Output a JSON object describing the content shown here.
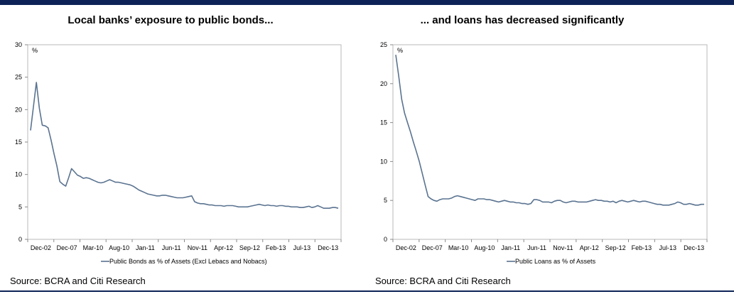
{
  "colors": {
    "accent": "#0d2357",
    "series": "#5a7390"
  },
  "left": {
    "title": "Local banks’ exposure to public bonds...",
    "source": "Source: BCRA and Citi Research"
  },
  "right": {
    "title": "... and loans has decreased significantly",
    "source": "Source: BCRA and Citi Research"
  },
  "chart_data": [
    {
      "type": "line",
      "title": "Local banks’ exposure to public bonds...",
      "ylabel": "%",
      "ylim": [
        0,
        30
      ],
      "yticks": [
        "0",
        "5",
        "10",
        "15",
        "20",
        "25",
        "30"
      ],
      "xticks": [
        "Dec-02",
        "Dec-07",
        "Mar-10",
        "Aug-10",
        "Jan-11",
        "Jun-11",
        "Nov-11",
        "Apr-12",
        "Sep-12",
        "Feb-13",
        "Jul-13",
        "Dec-13"
      ],
      "grid": false,
      "legend": "bottom",
      "series": [
        {
          "name": "Public Bonds as % of Assets (Excl Lebacs and Nobacs)",
          "values": [
            16.8,
            20.5,
            24.2,
            20.2,
            17.6,
            17.5,
            17.2,
            15.3,
            13.2,
            11.3,
            8.9,
            8.5,
            8.2,
            9.5,
            10.9,
            10.4,
            9.9,
            9.7,
            9.4,
            9.5,
            9.4,
            9.2,
            9.0,
            8.8,
            8.7,
            8.8,
            9.0,
            9.2,
            9.0,
            8.8,
            8.8,
            8.7,
            8.6,
            8.5,
            8.4,
            8.2,
            7.9,
            7.6,
            7.4,
            7.2,
            7.0,
            6.9,
            6.8,
            6.7,
            6.7,
            6.8,
            6.8,
            6.7,
            6.6,
            6.5,
            6.4,
            6.4,
            6.4,
            6.5,
            6.6,
            6.7,
            5.8,
            5.6,
            5.5,
            5.5,
            5.4,
            5.3,
            5.3,
            5.2,
            5.2,
            5.2,
            5.1,
            5.2,
            5.2,
            5.2,
            5.1,
            5.0,
            5.0,
            5.0,
            5.0,
            5.1,
            5.2,
            5.3,
            5.4,
            5.3,
            5.2,
            5.3,
            5.2,
            5.2,
            5.1,
            5.2,
            5.2,
            5.1,
            5.1,
            5.0,
            5.0,
            5.0,
            4.9,
            4.9,
            5.0,
            5.1,
            4.9,
            5.0,
            5.2,
            5.0,
            4.8,
            4.8,
            4.8,
            4.9,
            4.9,
            4.8
          ]
        }
      ]
    },
    {
      "type": "line",
      "title": "... and loans has decreased significantly",
      "ylabel": "%",
      "ylim": [
        0,
        25
      ],
      "yticks": [
        "0",
        "5",
        "10",
        "15",
        "20",
        "25"
      ],
      "xticks": [
        "Dec-02",
        "Dec-07",
        "Mar-10",
        "Aug-10",
        "Jan-11",
        "Jun-11",
        "Nov-11",
        "Apr-12",
        "Sep-12",
        "Feb-13",
        "Jul-13",
        "Dec-13"
      ],
      "grid": false,
      "legend": "bottom",
      "series": [
        {
          "name": "Public Loans as % of Assets",
          "values": [
            23.7,
            21.0,
            18.0,
            16.2,
            15.0,
            13.8,
            12.5,
            11.3,
            10.0,
            8.5,
            7.0,
            5.5,
            5.2,
            5.0,
            4.9,
            5.1,
            5.2,
            5.2,
            5.2,
            5.3,
            5.5,
            5.6,
            5.5,
            5.4,
            5.3,
            5.2,
            5.1,
            5.0,
            5.2,
            5.2,
            5.2,
            5.1,
            5.1,
            5.0,
            4.9,
            4.8,
            4.9,
            5.0,
            4.9,
            4.8,
            4.8,
            4.7,
            4.7,
            4.6,
            4.6,
            4.5,
            4.6,
            5.1,
            5.1,
            5.0,
            4.8,
            4.8,
            4.8,
            4.7,
            4.9,
            5.0,
            5.0,
            4.8,
            4.7,
            4.8,
            4.9,
            4.9,
            4.8,
            4.8,
            4.8,
            4.8,
            4.9,
            5.0,
            5.1,
            5.0,
            5.0,
            4.9,
            4.9,
            4.8,
            4.9,
            4.7,
            4.9,
            5.0,
            4.9,
            4.8,
            4.9,
            5.0,
            4.9,
            4.8,
            4.9,
            4.9,
            4.8,
            4.7,
            4.6,
            4.5,
            4.5,
            4.4,
            4.4,
            4.4,
            4.5,
            4.6,
            4.8,
            4.7,
            4.5,
            4.5,
            4.6,
            4.5,
            4.4,
            4.4,
            4.5,
            4.5
          ]
        }
      ]
    }
  ]
}
